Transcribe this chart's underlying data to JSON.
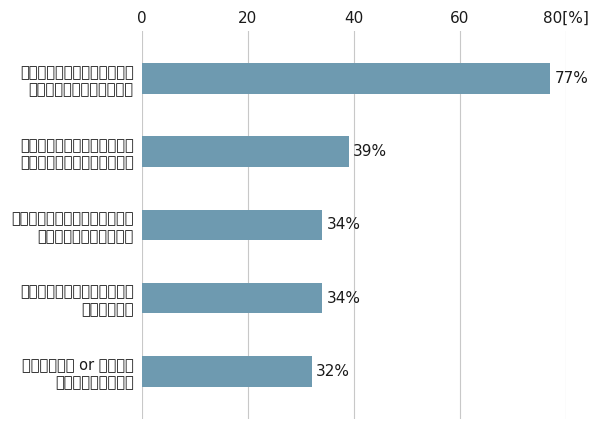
{
  "categories": [
    "未経験の業種 or 職種への\n転職を希望している",
    "転職により実現したいことが\n不明確である",
    "キャリアアップできない理由が\n会社にあると思っている",
    "転職回数が多く、これ以上の\n転職には大きなリスクが伴う",
    "本人の希望と、転職市場での\n市場価値にギャップがある"
  ],
  "values": [
    32,
    34,
    34,
    39,
    77
  ],
  "bar_color": "#6e9ab0",
  "xlim": [
    0,
    80
  ],
  "xticks": [
    0,
    20,
    40,
    60,
    80
  ],
  "label_fontsize": 10.5,
  "tick_fontsize": 11,
  "pct_fontsize": 11,
  "bar_height": 0.42,
  "bg_color": "#ffffff",
  "text_color": "#1a1a1a",
  "grid_color": "#c8c8c8"
}
